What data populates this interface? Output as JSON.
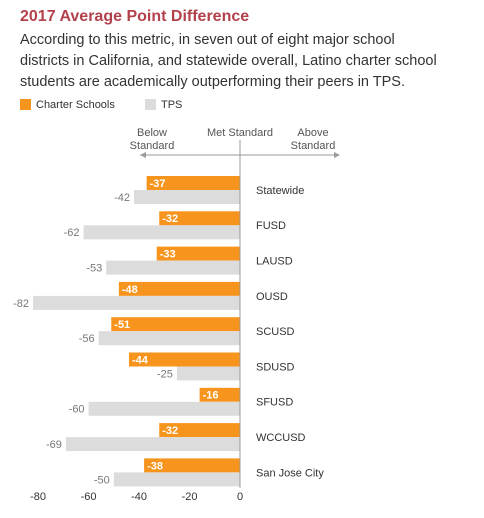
{
  "chart_data": {
    "type": "hbar",
    "title": "2017 Average Point Difference",
    "subtitle": [
      "According to this metric, in seven out of eight major school",
      "districts in California, and statewide overall, Latino charter school",
      "students are academically outperforming their peers in TPS."
    ],
    "annotations": [
      "Below Standard",
      "Met Standard",
      "Above Standard"
    ],
    "categories": [
      "Statewide",
      "FUSD",
      "LAUSD",
      "OUSD",
      "SCUSD",
      "SDUSD",
      "SFUSD",
      "WCCUSD",
      "San Jose City"
    ],
    "series": [
      {
        "name": "Charter Schools",
        "color": "#f7941d",
        "values": [
          -37,
          -32,
          -33,
          -48,
          -51,
          -44,
          -16,
          -32,
          -38
        ]
      },
      {
        "name": "TPS",
        "color": "#dcdcdc",
        "values": [
          -42,
          -62,
          -53,
          -82,
          -56,
          -25,
          -60,
          -69,
          -50
        ]
      }
    ],
    "xlim": [
      -84,
      0
    ],
    "xticks": [
      -80,
      -60,
      -40,
      -20,
      0
    ]
  }
}
